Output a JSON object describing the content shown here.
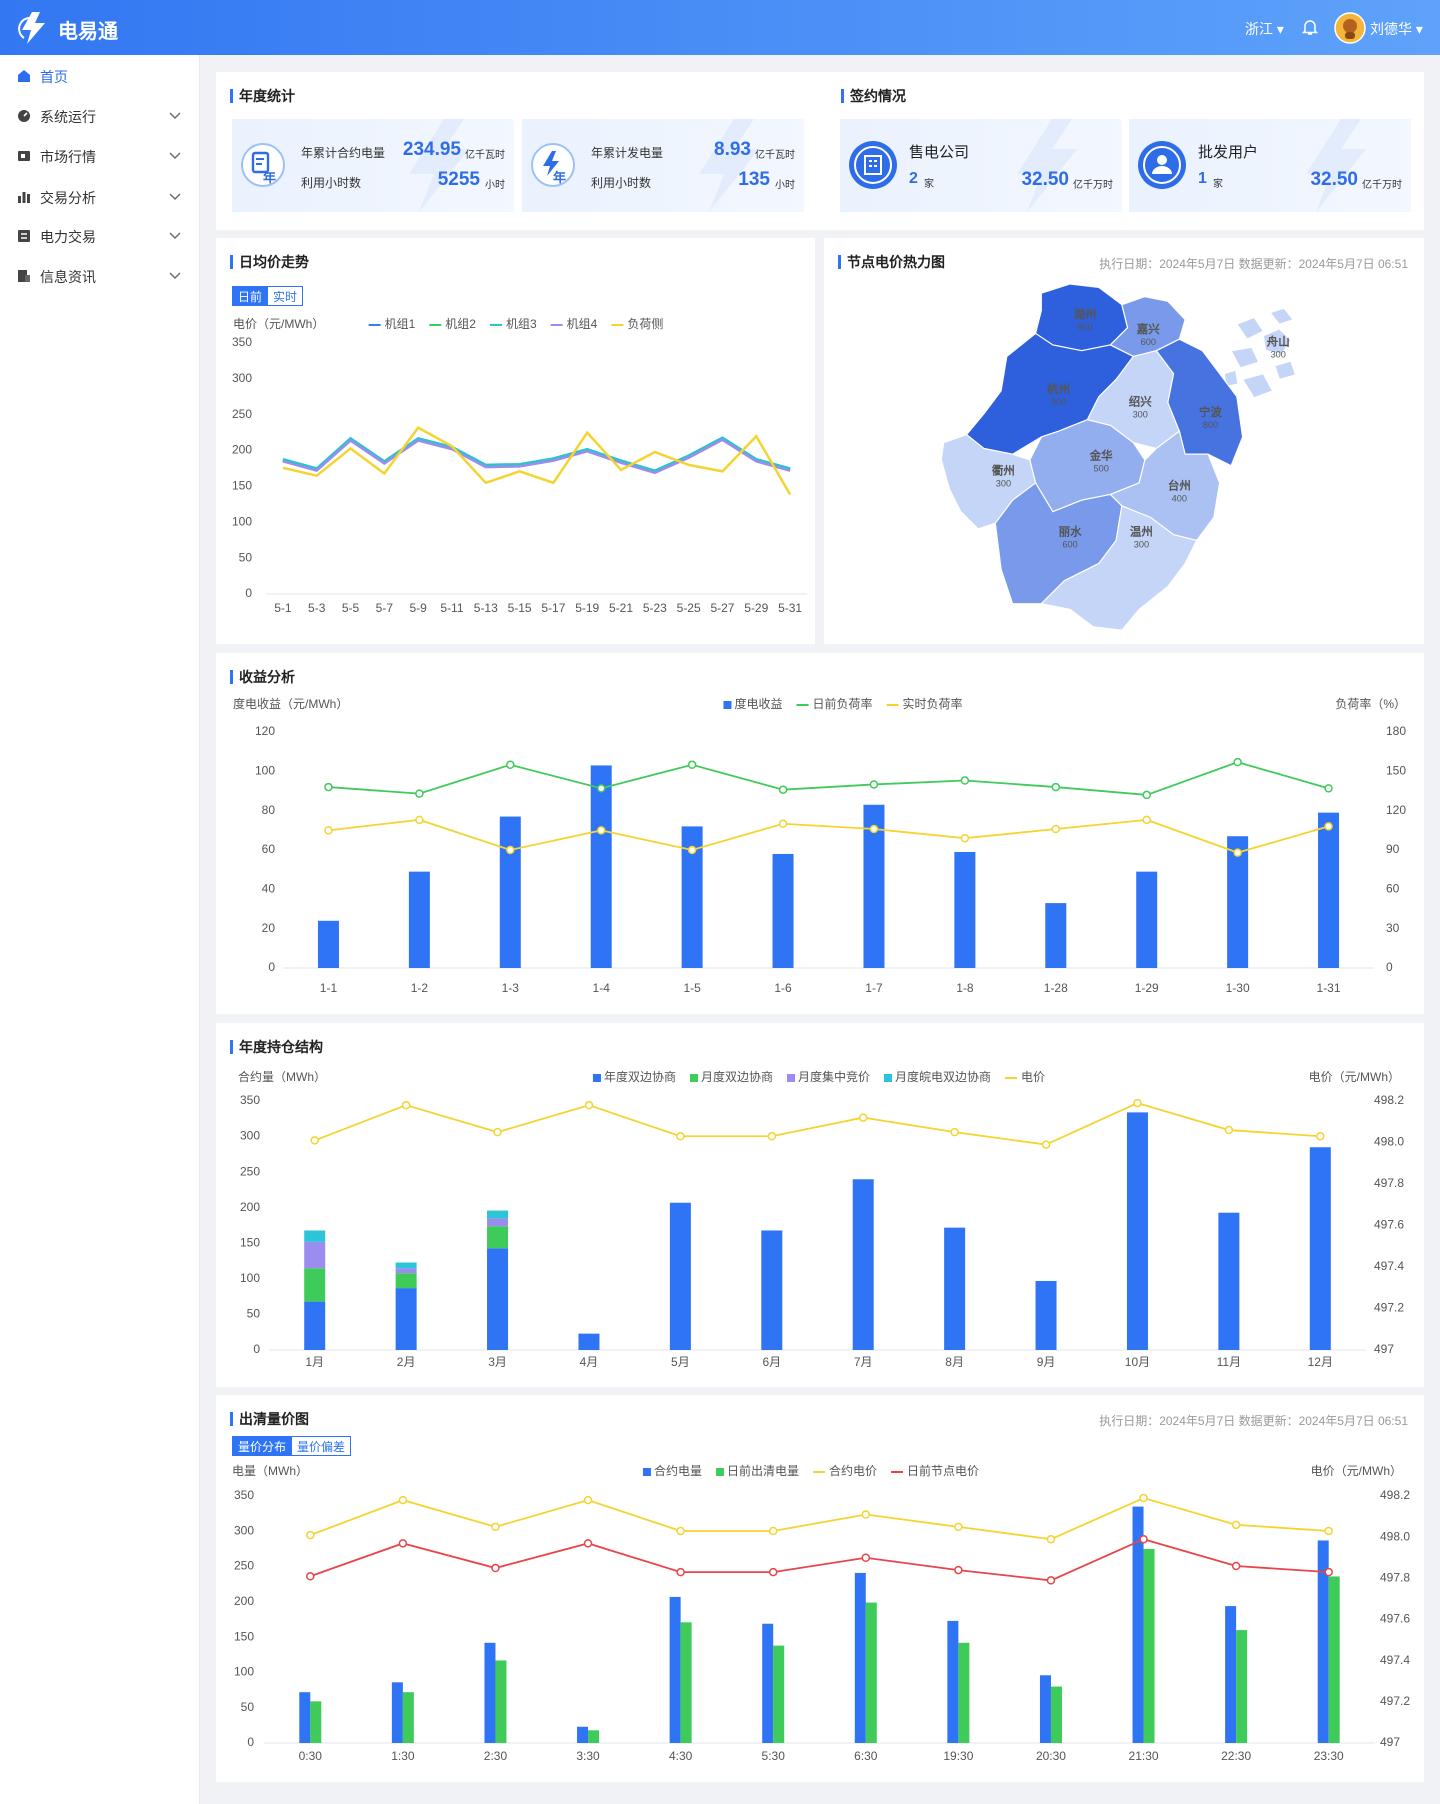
{
  "header": {
    "logo": "电易通",
    "region": "浙江",
    "user": "刘德华"
  },
  "sidebar": {
    "items": [
      "首页",
      "系统运行",
      "市场行情",
      "交易分析",
      "电力交易",
      "信息资讯"
    ]
  },
  "annual_stats": {
    "title": "年度统计",
    "cards": [
      {
        "icon": "年",
        "label1": "年累计合约电量",
        "value1": 234.95,
        "unit1": "亿千瓦时",
        "label2": "利用小时数",
        "value2": 5255,
        "unit2": "小时"
      },
      {
        "icon": "年",
        "label1": "年累计发电量",
        "value1": 8.93,
        "unit1": "亿千瓦时",
        "label2": "利用小时数",
        "value2": 135,
        "unit2": "小时"
      }
    ]
  },
  "contracts": {
    "title": "签约情况",
    "cards": [
      {
        "name": "售电公司",
        "count": 2,
        "count_unit": "家",
        "amount": "32.50",
        "amount_unit": "亿千万时"
      },
      {
        "name": "批发用户",
        "count": 1,
        "count_unit": "家",
        "amount": "32.50",
        "amount_unit": "亿千万时"
      }
    ]
  },
  "daily_price": {
    "type": "line",
    "title": "日均价走势",
    "tabs": [
      "日前",
      "实时"
    ],
    "ylabel": "电价（元/MWh）",
    "categories": [
      "5-1",
      "5-3",
      "5-5",
      "5-7",
      "5-9",
      "5-11",
      "5-13",
      "5-15",
      "5-17",
      "5-19",
      "5-21",
      "5-23",
      "5-25",
      "5-27",
      "5-29",
      "5-31"
    ],
    "ylim": [
      0,
      350
    ],
    "yticks": [
      0,
      50,
      100,
      150,
      200,
      250,
      300,
      350
    ],
    "series": [
      {
        "name": "机组1",
        "color": "#3b7cf4",
        "values": [
          187,
          174,
          216,
          184,
          216,
          204,
          179,
          180,
          188,
          201,
          185,
          171,
          192,
          217,
          187,
          174
        ]
      },
      {
        "name": "机组2",
        "color": "#3ecb5a",
        "values": [
          186,
          173,
          215,
          183,
          215,
          203,
          178,
          179,
          187,
          200,
          184,
          170,
          191,
          216,
          186,
          173
        ]
      },
      {
        "name": "机组3",
        "color": "#2cc4c8",
        "values": [
          188,
          175,
          217,
          185,
          217,
          205,
          180,
          181,
          189,
          202,
          186,
          172,
          193,
          218,
          188,
          175
        ]
      },
      {
        "name": "机组4",
        "color": "#9b8cf0",
        "values": [
          185,
          172,
          214,
          182,
          214,
          202,
          177,
          178,
          186,
          199,
          183,
          169,
          190,
          215,
          185,
          172
        ]
      },
      {
        "name": "负荷侧",
        "color": "#f5d330",
        "values": [
          176,
          165,
          203,
          168,
          232,
          206,
          155,
          171,
          155,
          225,
          173,
          198,
          180,
          171,
          220,
          139
        ]
      }
    ]
  },
  "heatmap": {
    "title": "节点电价热力图",
    "date_info": "执行日期：2024年5月7日  数据更新：2024年5月7日 06:51",
    "regions": [
      {
        "name": "湖州",
        "value": 900
      },
      {
        "name": "嘉兴",
        "value": 600
      },
      {
        "name": "舟山",
        "value": 300
      },
      {
        "name": "杭州",
        "value": 900
      },
      {
        "name": "绍兴",
        "value": 300
      },
      {
        "name": "宁波",
        "value": 800
      },
      {
        "name": "衢州",
        "value": 300
      },
      {
        "name": "金华",
        "value": 500
      },
      {
        "name": "台州",
        "value": 400
      },
      {
        "name": "丽水",
        "value": 600
      },
      {
        "name": "温州",
        "value": 300
      }
    ]
  },
  "revenue": {
    "type": "bar_line",
    "title": "收益分析",
    "ylabel": "度电收益（元/MWh）",
    "y2label": "负荷率（%）",
    "categories": [
      "1-1",
      "1-2",
      "1-3",
      "1-4",
      "1-5",
      "1-6",
      "1-7",
      "1-8",
      "1-28",
      "1-29",
      "1-30",
      "1-31"
    ],
    "ylim": [
      0,
      120
    ],
    "yticks": [
      0,
      20,
      40,
      60,
      80,
      100,
      120
    ],
    "y2lim": [
      0,
      180
    ],
    "y2ticks": [
      0,
      30,
      60,
      90,
      120,
      150,
      180
    ],
    "point_markers": true,
    "series": [
      {
        "name": "度电收益",
        "type": "bar",
        "color": "#2f74f5",
        "values": [
          24,
          49,
          77,
          103,
          72,
          58,
          83,
          59,
          33,
          49,
          67,
          79
        ]
      },
      {
        "name": "日前负荷率",
        "type": "line",
        "axis": "y2",
        "color": "#3ecb5a",
        "values": [
          138,
          133,
          155,
          137,
          155,
          136,
          140,
          143,
          138,
          132,
          157,
          137
        ]
      },
      {
        "name": "实时负荷率",
        "type": "line",
        "axis": "y2",
        "color": "#f5d330",
        "values": [
          105,
          113,
          90,
          105,
          90,
          110,
          106,
          99,
          106,
          113,
          88,
          108
        ]
      }
    ]
  },
  "position": {
    "type": "bar_line",
    "title": "年度持仓结构",
    "ylabel": "合约量（MWh）",
    "y2label": "电价（元/MWh）",
    "stacked": true,
    "categories": [
      "1月",
      "2月",
      "3月",
      "4月",
      "5月",
      "6月",
      "7月",
      "8月",
      "9月",
      "10月",
      "11月",
      "12月"
    ],
    "ylim": [
      0,
      350
    ],
    "yticks": [
      0,
      50,
      100,
      150,
      200,
      250,
      300,
      350
    ],
    "y2lim": [
      497,
      498.2
    ],
    "y2ticks": [
      497,
      497.2,
      497.4,
      497.6,
      497.8,
      {
        "value": 498,
        "label": "498.0"
      },
      498.2
    ],
    "point_markers": true,
    "series": [
      {
        "name": "年度双边协商",
        "type": "bar",
        "color": "#2f74f5",
        "values": [
          68,
          87,
          143,
          23,
          207,
          168,
          240,
          172,
          97,
          334,
          193,
          285
        ]
      },
      {
        "name": "月度双边协商",
        "type": "bar",
        "color": "#3ecb5a",
        "values": [
          47,
          21,
          31,
          0,
          0,
          0,
          0,
          0,
          0,
          0,
          0,
          0
        ]
      },
      {
        "name": "月度集中竞价",
        "type": "bar",
        "color": "#9b8cf0",
        "values": [
          37,
          7,
          11,
          0,
          0,
          0,
          0,
          0,
          0,
          0,
          0,
          0
        ]
      },
      {
        "name": "月度皖电双边协商",
        "type": "bar",
        "color": "#2cc4d8",
        "values": [
          16,
          8,
          11,
          0,
          0,
          0,
          0,
          0,
          0,
          0,
          0,
          0
        ]
      },
      {
        "name": "电价",
        "type": "line",
        "axis": "y2",
        "color": "#f5d330",
        "values": [
          498.01,
          498.18,
          498.05,
          498.18,
          498.03,
          498.03,
          498.12,
          498.05,
          497.99,
          498.19,
          498.06,
          498.03
        ]
      }
    ]
  },
  "clearing": {
    "type": "bar_line",
    "title": "出清量价图",
    "tabs": [
      "量价分布",
      "量价偏差"
    ],
    "date_info": "执行日期：2024年5月7日  数据更新：2024年5月7日 06:51",
    "ylabel": "电量（MWh）",
    "y2label": "电价（元/MWh）",
    "categories": [
      "0:30",
      "1:30",
      "2:30",
      "3:30",
      "4:30",
      "5:30",
      "6:30",
      "19:30",
      "20:30",
      "21:30",
      "22:30",
      "23:30"
    ],
    "ylim": [
      0,
      350
    ],
    "yticks": [
      0,
      50,
      100,
      150,
      200,
      250,
      300,
      350
    ],
    "y2lim": [
      497,
      498.2
    ],
    "y2ticks": [
      497,
      497.2,
      497.4,
      497.6,
      497.8,
      {
        "value": 498,
        "label": "498.0"
      },
      498.2
    ],
    "point_markers": true,
    "series": [
      {
        "name": "合约电量",
        "type": "bar",
        "color": "#2f74f5",
        "values": [
          72,
          86,
          142,
          23,
          207,
          169,
          241,
          173,
          96,
          335,
          194,
          287
        ]
      },
      {
        "name": "日前出清电量",
        "type": "bar",
        "color": "#3ecb5a",
        "values": [
          59,
          72,
          117,
          18,
          171,
          138,
          199,
          142,
          80,
          275,
          160,
          236
        ]
      },
      {
        "name": "合约电价",
        "type": "line",
        "axis": "y2",
        "color": "#f5d330",
        "values": [
          498.01,
          498.18,
          498.05,
          498.18,
          498.03,
          498.03,
          498.11,
          498.05,
          497.99,
          498.19,
          498.06,
          498.03
        ]
      },
      {
        "name": "日前节点电价",
        "type": "line",
        "axis": "y2",
        "color": "#e8454a",
        "values": [
          497.81,
          497.97,
          497.85,
          497.97,
          497.83,
          497.83,
          497.9,
          497.84,
          497.79,
          497.99,
          497.86,
          497.83
        ]
      }
    ]
  }
}
